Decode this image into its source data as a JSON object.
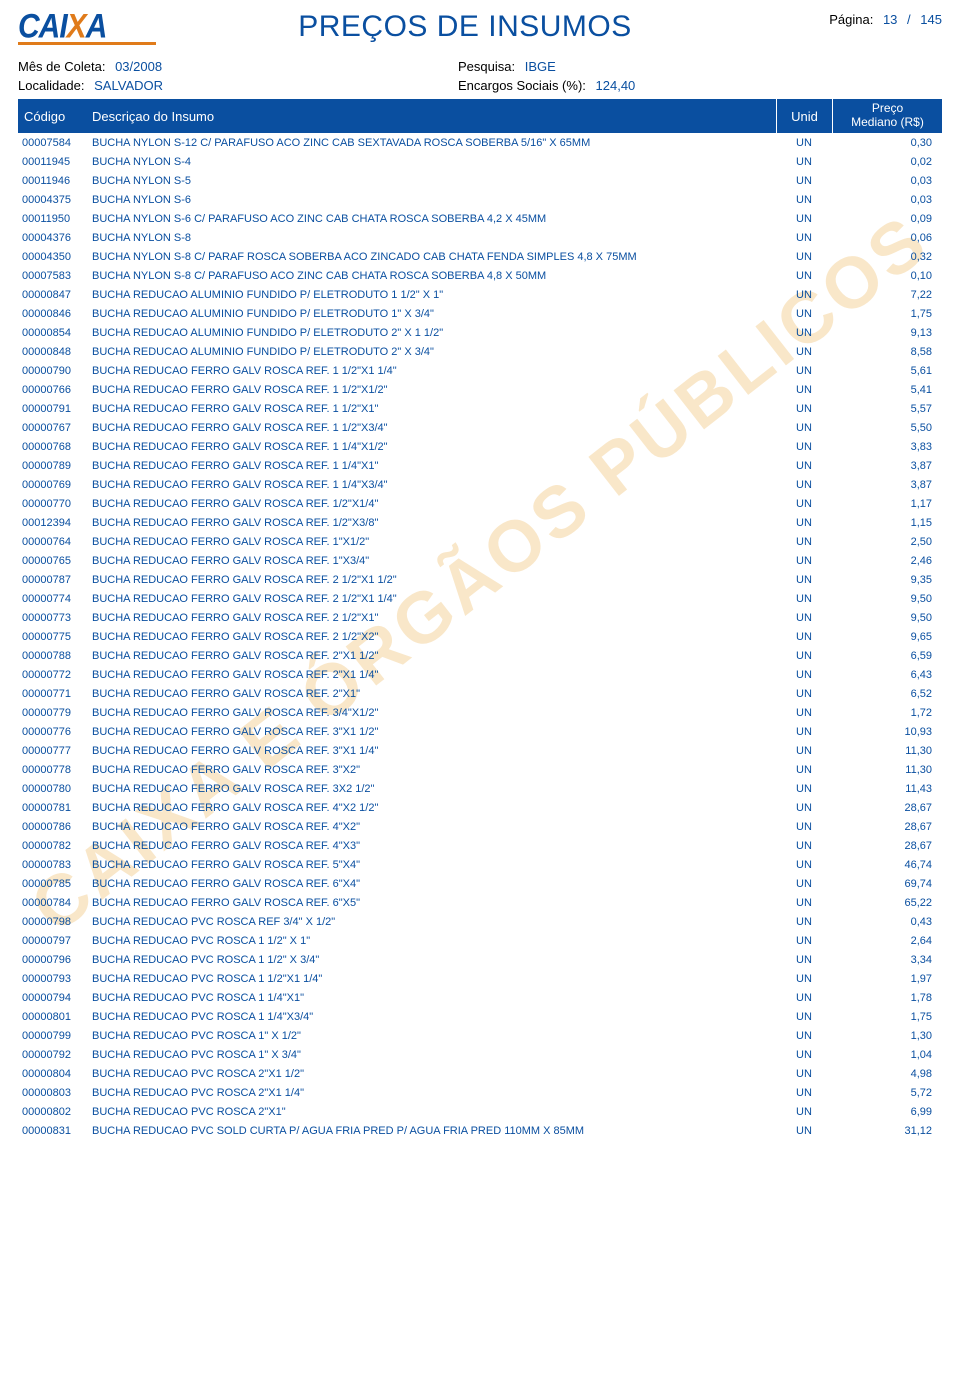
{
  "logo": {
    "text_a": "CAI",
    "text_x": "X",
    "text_b": "A"
  },
  "title": "PREÇOS DE INSUMOS",
  "page": {
    "label": "Página:",
    "current": "13",
    "sep": "/",
    "total": "145"
  },
  "meta": {
    "mes_label": "Mês de Coleta:",
    "mes_value": "03/2008",
    "pesquisa_label": "Pesquisa:",
    "pesquisa_value": "IBGE",
    "localidade_label": "Localidade:",
    "localidade_value": "SALVADOR",
    "encargos_label": "Encargos Sociais (%):",
    "encargos_value": "124,40"
  },
  "header": {
    "codigo": "Código",
    "descricao": "Descriçao do Insumo",
    "unid": "Unid",
    "preco_l1": "Preço",
    "preco_l2": "Mediano (R$)"
  },
  "watermark": "CAIXA E ÓRGÃOS PÚBLICOS",
  "rows": [
    {
      "codigo": "00007584",
      "desc": "BUCHA NYLON S-12 C/ PARAFUSO ACO ZINC CAB SEXTAVADA ROSCA SOBERBA 5/16\" X 65MM",
      "unid": "UN",
      "preco": "0,30"
    },
    {
      "codigo": "00011945",
      "desc": "BUCHA NYLON S-4",
      "unid": "UN",
      "preco": "0,02"
    },
    {
      "codigo": "00011946",
      "desc": "BUCHA NYLON S-5",
      "unid": "UN",
      "preco": "0,03"
    },
    {
      "codigo": "00004375",
      "desc": "BUCHA NYLON S-6",
      "unid": "UN",
      "preco": "0,03"
    },
    {
      "codigo": "00011950",
      "desc": "BUCHA NYLON S-6 C/ PARAFUSO ACO ZINC CAB CHATA ROSCA SOBERBA 4,2 X 45MM",
      "unid": "UN",
      "preco": "0,09"
    },
    {
      "codigo": "00004376",
      "desc": "BUCHA NYLON S-8",
      "unid": "UN",
      "preco": "0,06"
    },
    {
      "codigo": "00004350",
      "desc": "BUCHA NYLON S-8 C/ PARAF ROSCA SOBERBA ACO ZINCADO CAB CHATA FENDA SIMPLES   4,8 X 75MM",
      "unid": "UN",
      "preco": "0,32"
    },
    {
      "codigo": "00007583",
      "desc": "BUCHA NYLON S-8 C/ PARAFUSO ACO ZINC CAB CHATA ROSCA SOBERBA  4,8 X 50MM",
      "unid": "UN",
      "preco": "0,10"
    },
    {
      "codigo": "00000847",
      "desc": "BUCHA REDUCAO ALUMINIO FUNDIDO P/ ELETRODUTO 1 1/2\" X 1\"",
      "unid": "UN",
      "preco": "7,22"
    },
    {
      "codigo": "00000846",
      "desc": "BUCHA REDUCAO ALUMINIO FUNDIDO P/ ELETRODUTO 1\" X   3/4\"",
      "unid": "UN",
      "preco": "1,75"
    },
    {
      "codigo": "00000854",
      "desc": "BUCHA REDUCAO ALUMINIO FUNDIDO P/ ELETRODUTO 2\" X   1 1/2\"",
      "unid": "UN",
      "preco": "9,13"
    },
    {
      "codigo": "00000848",
      "desc": "BUCHA REDUCAO ALUMINIO FUNDIDO P/ ELETRODUTO 2\" X 3/4\"",
      "unid": "UN",
      "preco": "8,58"
    },
    {
      "codigo": "00000790",
      "desc": "BUCHA REDUCAO FERRO GALV ROSCA REF. 1 1/2\"X1 1/4\"",
      "unid": "UN",
      "preco": "5,61"
    },
    {
      "codigo": "00000766",
      "desc": "BUCHA REDUCAO FERRO GALV ROSCA REF. 1 1/2\"X1/2\"",
      "unid": "UN",
      "preco": "5,41"
    },
    {
      "codigo": "00000791",
      "desc": "BUCHA REDUCAO FERRO GALV ROSCA REF. 1 1/2\"X1\"",
      "unid": "UN",
      "preco": "5,57"
    },
    {
      "codigo": "00000767",
      "desc": "BUCHA REDUCAO FERRO GALV ROSCA REF. 1 1/2\"X3/4\"",
      "unid": "UN",
      "preco": "5,50"
    },
    {
      "codigo": "00000768",
      "desc": "BUCHA REDUCAO FERRO GALV ROSCA REF. 1 1/4\"X1/2\"",
      "unid": "UN",
      "preco": "3,83"
    },
    {
      "codigo": "00000789",
      "desc": "BUCHA REDUCAO FERRO GALV ROSCA REF. 1 1/4\"X1\"",
      "unid": "UN",
      "preco": "3,87"
    },
    {
      "codigo": "00000769",
      "desc": "BUCHA REDUCAO FERRO GALV ROSCA REF. 1 1/4\"X3/4\"",
      "unid": "UN",
      "preco": "3,87"
    },
    {
      "codigo": "00000770",
      "desc": "BUCHA REDUCAO FERRO GALV ROSCA REF. 1/2\"X1/4\"",
      "unid": "UN",
      "preco": "1,17"
    },
    {
      "codigo": "00012394",
      "desc": "BUCHA REDUCAO FERRO GALV ROSCA REF. 1/2\"X3/8\"",
      "unid": "UN",
      "preco": "1,15"
    },
    {
      "codigo": "00000764",
      "desc": "BUCHA REDUCAO FERRO GALV ROSCA REF. 1\"X1/2\"",
      "unid": "UN",
      "preco": "2,50"
    },
    {
      "codigo": "00000765",
      "desc": "BUCHA REDUCAO FERRO GALV ROSCA REF. 1\"X3/4\"",
      "unid": "UN",
      "preco": "2,46"
    },
    {
      "codigo": "00000787",
      "desc": "BUCHA REDUCAO FERRO GALV ROSCA REF. 2 1/2\"X1 1/2\"",
      "unid": "UN",
      "preco": "9,35"
    },
    {
      "codigo": "00000774",
      "desc": "BUCHA REDUCAO FERRO GALV ROSCA REF. 2 1/2\"X1 1/4\"",
      "unid": "UN",
      "preco": "9,50"
    },
    {
      "codigo": "00000773",
      "desc": "BUCHA REDUCAO FERRO GALV ROSCA REF. 2 1/2\"X1\"",
      "unid": "UN",
      "preco": "9,50"
    },
    {
      "codigo": "00000775",
      "desc": "BUCHA REDUCAO FERRO GALV ROSCA REF. 2 1/2\"X2\"",
      "unid": "UN",
      "preco": "9,65"
    },
    {
      "codigo": "00000788",
      "desc": "BUCHA REDUCAO FERRO GALV ROSCA REF. 2\"X1 1/2\"",
      "unid": "UN",
      "preco": "6,59"
    },
    {
      "codigo": "00000772",
      "desc": "BUCHA REDUCAO FERRO GALV ROSCA REF. 2\"X1 1/4\"",
      "unid": "UN",
      "preco": "6,43"
    },
    {
      "codigo": "00000771",
      "desc": "BUCHA REDUCAO FERRO GALV ROSCA REF. 2\"X1\"",
      "unid": "UN",
      "preco": "6,52"
    },
    {
      "codigo": "00000779",
      "desc": "BUCHA REDUCAO FERRO GALV ROSCA REF. 3/4\"X1/2\"",
      "unid": "UN",
      "preco": "1,72"
    },
    {
      "codigo": "00000776",
      "desc": "BUCHA REDUCAO FERRO GALV ROSCA REF. 3\"X1 1/2\"",
      "unid": "UN",
      "preco": "10,93"
    },
    {
      "codigo": "00000777",
      "desc": "BUCHA REDUCAO FERRO GALV ROSCA REF. 3\"X1 1/4\"",
      "unid": "UN",
      "preco": "11,30"
    },
    {
      "codigo": "00000778",
      "desc": "BUCHA REDUCAO FERRO GALV ROSCA REF. 3\"X2\"",
      "unid": "UN",
      "preco": "11,30"
    },
    {
      "codigo": "00000780",
      "desc": "BUCHA REDUCAO FERRO GALV ROSCA REF. 3X2 1/2\"",
      "unid": "UN",
      "preco": "11,43"
    },
    {
      "codigo": "00000781",
      "desc": "BUCHA REDUCAO FERRO GALV ROSCA REF. 4\"X2 1/2\"",
      "unid": "UN",
      "preco": "28,67"
    },
    {
      "codigo": "00000786",
      "desc": "BUCHA REDUCAO FERRO GALV ROSCA REF. 4\"X2\"",
      "unid": "UN",
      "preco": "28,67"
    },
    {
      "codigo": "00000782",
      "desc": "BUCHA REDUCAO FERRO GALV ROSCA REF. 4\"X3\"",
      "unid": "UN",
      "preco": "28,67"
    },
    {
      "codigo": "00000783",
      "desc": "BUCHA REDUCAO FERRO GALV ROSCA REF. 5\"X4\"",
      "unid": "UN",
      "preco": "46,74"
    },
    {
      "codigo": "00000785",
      "desc": "BUCHA REDUCAO FERRO GALV ROSCA REF. 6\"X4\"",
      "unid": "UN",
      "preco": "69,74"
    },
    {
      "codigo": "00000784",
      "desc": "BUCHA REDUCAO FERRO GALV ROSCA REF. 6\"X5\"",
      "unid": "UN",
      "preco": "65,22"
    },
    {
      "codigo": "00000798",
      "desc": "BUCHA REDUCAO PVC ROSCA REF 3/4\" X 1/2\"",
      "unid": "UN",
      "preco": "0,43"
    },
    {
      "codigo": "00000797",
      "desc": "BUCHA REDUCAO PVC ROSCA 1 1/2\" X 1\"",
      "unid": "UN",
      "preco": "2,64"
    },
    {
      "codigo": "00000796",
      "desc": "BUCHA REDUCAO PVC ROSCA 1 1/2\" X 3/4\"",
      "unid": "UN",
      "preco": "3,34"
    },
    {
      "codigo": "00000793",
      "desc": "BUCHA REDUCAO PVC ROSCA 1 1/2\"X1 1/4\"",
      "unid": "UN",
      "preco": "1,97"
    },
    {
      "codigo": "00000794",
      "desc": "BUCHA REDUCAO PVC ROSCA 1 1/4\"X1\"",
      "unid": "UN",
      "preco": "1,78"
    },
    {
      "codigo": "00000801",
      "desc": "BUCHA REDUCAO PVC ROSCA 1 1/4\"X3/4\"",
      "unid": "UN",
      "preco": "1,75"
    },
    {
      "codigo": "00000799",
      "desc": "BUCHA REDUCAO PVC ROSCA 1\" X 1/2\"",
      "unid": "UN",
      "preco": "1,30"
    },
    {
      "codigo": "00000792",
      "desc": "BUCHA REDUCAO PVC ROSCA 1\" X 3/4\"",
      "unid": "UN",
      "preco": "1,04"
    },
    {
      "codigo": "00000804",
      "desc": "BUCHA REDUCAO PVC ROSCA 2\"X1 1/2\"",
      "unid": "UN",
      "preco": "4,98"
    },
    {
      "codigo": "00000803",
      "desc": "BUCHA REDUCAO PVC ROSCA 2\"X1 1/4\"",
      "unid": "UN",
      "preco": "5,72"
    },
    {
      "codigo": "00000802",
      "desc": "BUCHA REDUCAO PVC ROSCA 2\"X1\"",
      "unid": "UN",
      "preco": "6,99"
    },
    {
      "codigo": "00000831",
      "desc": "BUCHA REDUCAO PVC SOLD CURTA P/ AGUA FRIA PRED P/ AGUA FRIA PRED 110MM X 85MM",
      "unid": "UN",
      "preco": "31,12"
    }
  ],
  "colors": {
    "brand_blue": "#0a4fa0",
    "brand_orange": "#e07b1a",
    "watermark": "rgba(230,160,40,0.25)",
    "background": "#ffffff"
  }
}
